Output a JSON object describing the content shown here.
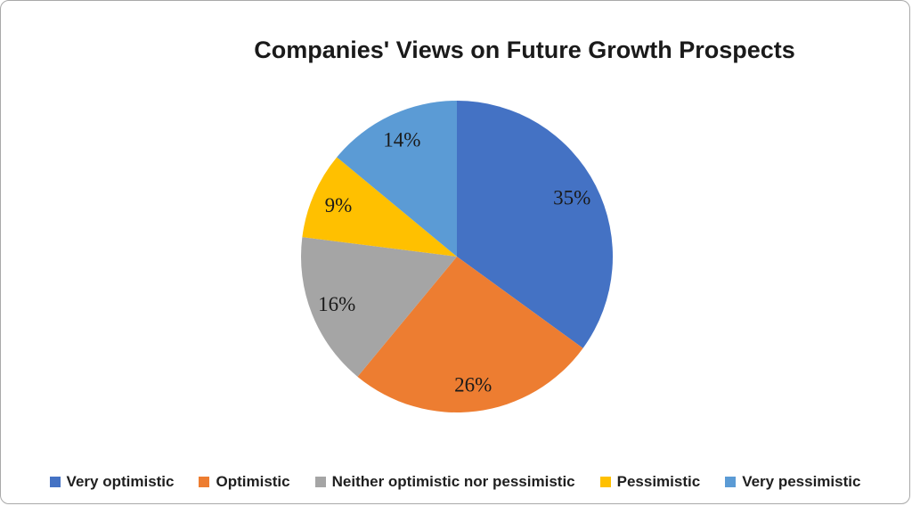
{
  "chart_data": {
    "type": "pie",
    "title": "Companies' Views on Future Growth Prospects",
    "slices": [
      {
        "label": "Very optimistic",
        "value": 35,
        "display": "35%",
        "color": "#4472C4"
      },
      {
        "label": "Optimistic",
        "value": 26,
        "display": "26%",
        "color": "#ED7D31"
      },
      {
        "label": "Neither optimistic nor pessimistic",
        "value": 16,
        "display": "16%",
        "color": "#A5A5A5"
      },
      {
        "label": "Pessimistic",
        "value": 9,
        "display": "9%",
        "color": "#FFC000"
      },
      {
        "label": "Very pessimistic",
        "value": 14,
        "display": "14%",
        "color": "#5B9BD5"
      }
    ],
    "start_angle_deg": 0,
    "direction": "clockwise",
    "data_labels": "percent, inside",
    "label_color": "#1a1a1a",
    "legend_position": "bottom",
    "grid": "off"
  }
}
